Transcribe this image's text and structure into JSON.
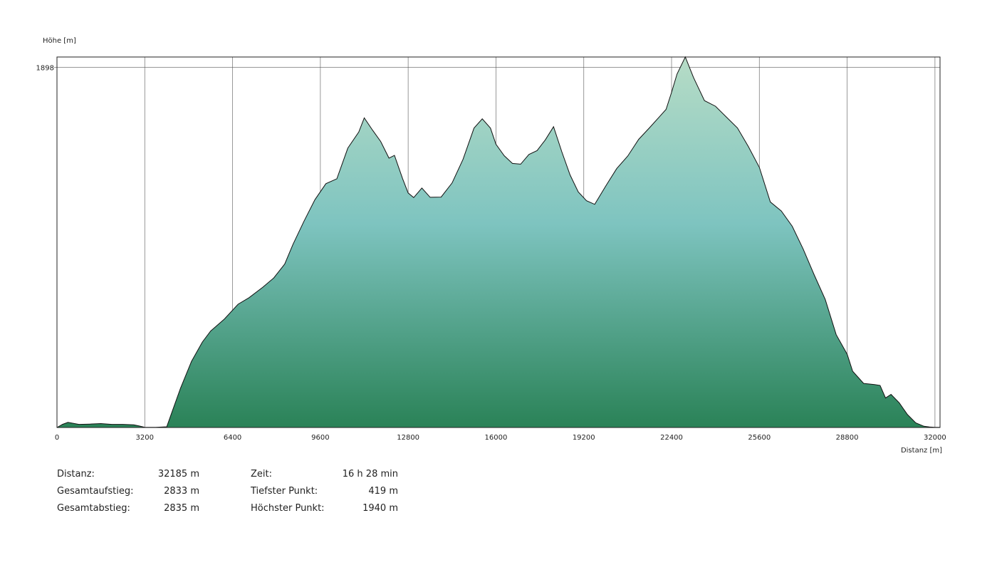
{
  "chart_data": {
    "type": "area",
    "ylabel": "Höhe [m]",
    "xlabel": "Distanz [m]",
    "xlim": [
      0,
      32185
    ],
    "ylim": [
      419,
      1940
    ],
    "xticks": [
      0,
      3200,
      6400,
      9600,
      12800,
      16000,
      19200,
      22400,
      25600,
      28800,
      32000
    ],
    "xtick_labels": [
      "0",
      "3200",
      "6400",
      "9600",
      "12800",
      "16000",
      "19200",
      "22400",
      "25600",
      "28800",
      "32000"
    ],
    "yticks": [
      1898
    ],
    "ytick_labels": [
      "1898"
    ],
    "grid": true,
    "colors": {
      "fill_top": "#b6dcc6",
      "fill_mid": "#7ec4c0",
      "fill_bottom": "#2a8257",
      "line": "#111111"
    },
    "x": [
      0,
      200,
      400,
      800,
      1200,
      1600,
      2000,
      2400,
      2800,
      3000,
      3200,
      3600,
      4000,
      4200,
      4500,
      4900,
      5300,
      5600,
      6100,
      6600,
      7000,
      7500,
      7900,
      8300,
      8600,
      9000,
      9400,
      9800,
      10200,
      10600,
      11000,
      11200,
      11500,
      11800,
      12100,
      12300,
      12600,
      12800,
      13000,
      13300,
      13600,
      14000,
      14400,
      14800,
      15200,
      15500,
      15800,
      16000,
      16300,
      16600,
      16900,
      17200,
      17500,
      17800,
      18100,
      18400,
      18700,
      19000,
      19300,
      19600,
      20000,
      20400,
      20800,
      21200,
      21600,
      22000,
      22200,
      22400,
      22600,
      22900,
      23200,
      23600,
      24000,
      24400,
      24800,
      25200,
      25600,
      26000,
      26400,
      26800,
      27200,
      27600,
      28000,
      28400,
      28800,
      29000,
      29400,
      29800,
      30000,
      30200,
      30400,
      30700,
      31000,
      31300,
      31600,
      31800,
      32000,
      32185
    ],
    "y": [
      419,
      432,
      440,
      432,
      433,
      435,
      432,
      432,
      430,
      425,
      420,
      420,
      422,
      485,
      580,
      690,
      770,
      815,
      864,
      925,
      952,
      995,
      1033,
      1090,
      1170,
      1265,
      1354,
      1420,
      1440,
      1566,
      1632,
      1690,
      1640,
      1593,
      1525,
      1536,
      1440,
      1382,
      1363,
      1402,
      1364,
      1365,
      1423,
      1520,
      1648,
      1686,
      1648,
      1582,
      1535,
      1503,
      1500,
      1540,
      1556,
      1600,
      1654,
      1551,
      1456,
      1386,
      1350,
      1335,
      1410,
      1482,
      1533,
      1602,
      1650,
      1700,
      1725,
      1795,
      1870,
      1940,
      1856,
      1761,
      1738,
      1693,
      1649,
      1572,
      1487,
      1345,
      1308,
      1245,
      1151,
      1045,
      945,
      800,
      720,
      650,
      600,
      595,
      592,
      540,
      555,
      520,
      472,
      438,
      424,
      421,
      420,
      420
    ]
  },
  "stats": {
    "distanz_label": "Distanz:",
    "distanz_value": "32185 m",
    "aufstieg_label": "Gesamtaufstieg:",
    "aufstieg_value": "2833 m",
    "abstieg_label": "Gesamtabstieg:",
    "abstieg_value": "2835 m",
    "zeit_label": "Zeit:",
    "zeit_value": "16 h 28 min",
    "tiefster_label": "Tiefster Punkt:",
    "tiefster_value": "419 m",
    "hoechster_label": "Höchster Punkt:",
    "hoechster_value": "1940 m"
  }
}
